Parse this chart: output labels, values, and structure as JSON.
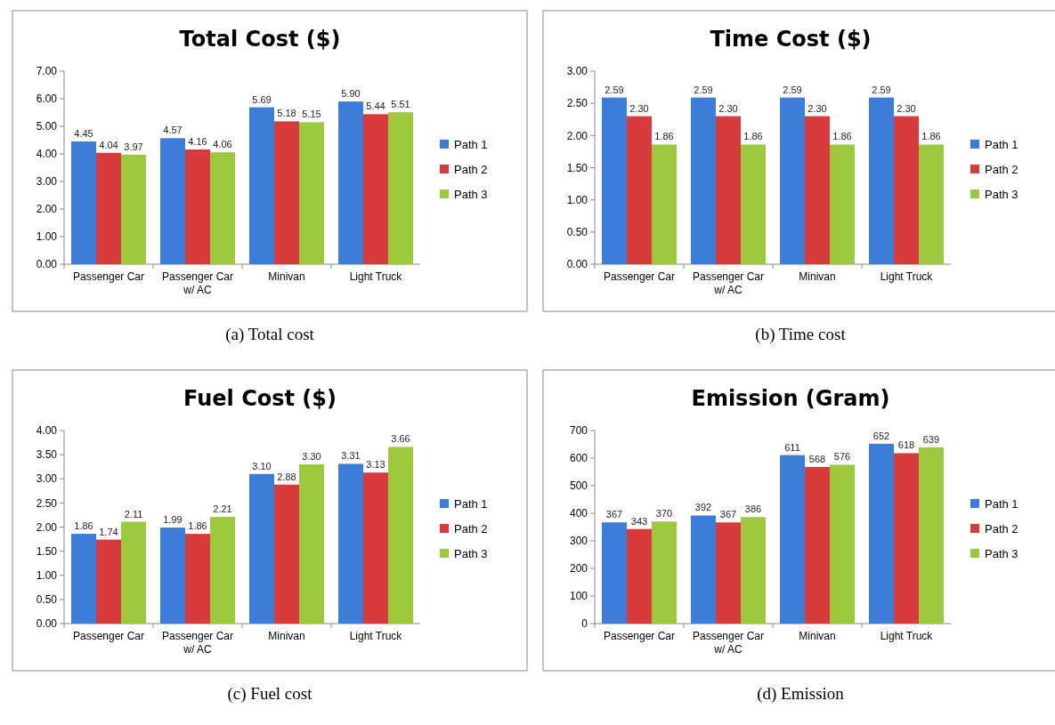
{
  "chart_data": [
    {
      "type": "bar",
      "title": "Total Cost ($)",
      "categories": [
        "Passenger Car",
        "Passenger Car w/ AC",
        "Minivan",
        "Light Truck"
      ],
      "ylim": [
        0,
        7
      ],
      "yticks": [
        {
          "value": 0,
          "label": "0.00"
        },
        {
          "value": 1,
          "label": "1.00"
        },
        {
          "value": 2,
          "label": "2.00"
        },
        {
          "value": 3,
          "label": "3.00"
        },
        {
          "value": 4,
          "label": "4.00"
        },
        {
          "value": 5,
          "label": "5.00"
        },
        {
          "value": 6,
          "label": "6.00"
        },
        {
          "value": 7,
          "label": "7.00"
        }
      ],
      "legend": "right",
      "annotations": [
        "(a)  Total cost"
      ],
      "series": [
        {
          "name": "Path 1",
          "color": "#3b7dd8",
          "values": [
            4.45,
            4.57,
            5.69,
            5.9
          ],
          "value_labels": [
            "4.45",
            "4.57",
            "5.69",
            "5.90"
          ]
        },
        {
          "name": "Path 2",
          "color": "#d83b3b",
          "values": [
            4.04,
            4.16,
            5.18,
            5.44
          ],
          "value_labels": [
            "4.04",
            "4.16",
            "5.18",
            "5.44"
          ]
        },
        {
          "name": "Path 3",
          "color": "#9bc83c",
          "values": [
            3.97,
            4.06,
            5.15,
            5.51
          ],
          "value_labels": [
            "3.97",
            "4.06",
            "5.15",
            "5.51"
          ]
        }
      ]
    },
    {
      "type": "bar",
      "title": "Time Cost ($)",
      "categories": [
        "Passenger Car",
        "Passenger Car w/ AC",
        "Minivan",
        "Light Truck"
      ],
      "ylim": [
        0,
        3
      ],
      "yticks": [
        {
          "value": 0,
          "label": "0.00"
        },
        {
          "value": 0.5,
          "label": "0.50"
        },
        {
          "value": 1,
          "label": "1.00"
        },
        {
          "value": 1.5,
          "label": "1.50"
        },
        {
          "value": 2,
          "label": "2.00"
        },
        {
          "value": 2.5,
          "label": "2.50"
        },
        {
          "value": 3,
          "label": "3.00"
        }
      ],
      "legend": "right",
      "annotations": [
        "(b)  Time cost"
      ],
      "series": [
        {
          "name": "Path 1",
          "color": "#3b7dd8",
          "values": [
            2.59,
            2.59,
            2.59,
            2.59
          ],
          "value_labels": [
            "2.59",
            "2.59",
            "2.59",
            "2.59"
          ]
        },
        {
          "name": "Path 2",
          "color": "#d83b3b",
          "values": [
            2.3,
            2.3,
            2.3,
            2.3
          ],
          "value_labels": [
            "2.30",
            "2.30",
            "2.30",
            "2.30"
          ]
        },
        {
          "name": "Path 3",
          "color": "#9bc83c",
          "values": [
            1.86,
            1.86,
            1.86,
            1.86
          ],
          "value_labels": [
            "1.86",
            "1.86",
            "1.86",
            "1.86"
          ]
        }
      ]
    },
    {
      "type": "bar",
      "title": "Fuel Cost ($)",
      "categories": [
        "Passenger Car",
        "Passenger Car w/ AC",
        "Minivan",
        "Light Truck"
      ],
      "ylim": [
        0,
        4
      ],
      "yticks": [
        {
          "value": 0,
          "label": "0.00"
        },
        {
          "value": 0.5,
          "label": "0.50"
        },
        {
          "value": 1,
          "label": "1.00"
        },
        {
          "value": 1.5,
          "label": "1.50"
        },
        {
          "value": 2,
          "label": "2.00"
        },
        {
          "value": 2.5,
          "label": "2.50"
        },
        {
          "value": 3,
          "label": "3.00"
        },
        {
          "value": 3.5,
          "label": "3.50"
        },
        {
          "value": 4,
          "label": "4.00"
        }
      ],
      "legend": "right",
      "annotations": [
        "(c)  Fuel cost"
      ],
      "series": [
        {
          "name": "Path 1",
          "color": "#3b7dd8",
          "values": [
            1.86,
            1.99,
            3.1,
            3.31
          ],
          "value_labels": [
            "1.86",
            "1.99",
            "3.10",
            "3.31"
          ]
        },
        {
          "name": "Path 2",
          "color": "#d83b3b",
          "values": [
            1.74,
            1.86,
            2.88,
            3.13
          ],
          "value_labels": [
            "1.74",
            "1.86",
            "2.88",
            "3.13"
          ]
        },
        {
          "name": "Path 3",
          "color": "#9bc83c",
          "values": [
            2.11,
            2.21,
            3.3,
            3.66
          ],
          "value_labels": [
            "2.11",
            "2.21",
            "3.30",
            "3.66"
          ]
        }
      ]
    },
    {
      "type": "bar",
      "title": "Emission (Gram)",
      "categories": [
        "Passenger Car",
        "Passenger Car w/ AC",
        "Minivan",
        "Light Truck"
      ],
      "ylim": [
        0,
        700
      ],
      "yticks": [
        0,
        100,
        200,
        300,
        400,
        500,
        600,
        700
      ],
      "legend": "right",
      "annotations": [
        "(d)  Emission"
      ],
      "series": [
        {
          "name": "Path 1",
          "color": "#3b7dd8",
          "values": [
            367,
            392,
            611,
            652
          ],
          "value_labels": [
            "367",
            "392",
            "611",
            "652"
          ]
        },
        {
          "name": "Path 2",
          "color": "#d83b3b",
          "values": [
            343,
            367,
            568,
            618
          ],
          "value_labels": [
            "343",
            "367",
            "568",
            "618"
          ]
        },
        {
          "name": "Path 3",
          "color": "#9bc83c",
          "values": [
            370,
            386,
            576,
            639
          ],
          "value_labels": [
            "370",
            "386",
            "576",
            "639"
          ]
        }
      ]
    }
  ]
}
